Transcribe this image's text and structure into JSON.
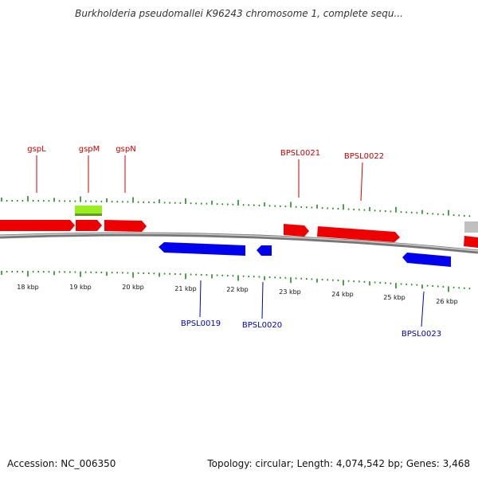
{
  "header": {
    "title": "Burkholderia pseudomallei K96243 chromosome 1, complete sequ..."
  },
  "footer": {
    "accession": "Accession: NC_006350",
    "summary": "Topology: circular; Length: 4,074,542 bp; Genes: 3,468"
  },
  "map": {
    "scale_labels": [
      "18 kbp",
      "19 kbp",
      "20 kbp",
      "21 kbp",
      "22 kbp",
      "23 kbp",
      "24 kbp",
      "25 kbp",
      "26 kbp"
    ],
    "top_gene_labels": [
      "gspL",
      "gspM",
      "gspN",
      "BPSL0021",
      "BPSL0022"
    ],
    "bottom_gene_labels": [
      "BPSL0019",
      "BPSL0020",
      "BPSL0023"
    ],
    "colors": {
      "forward": "#ee0000",
      "reverse": "#0000ee",
      "green_feature": "#99ee22",
      "gray_feature": "#c0c0c0",
      "tick": "#228822",
      "backbone": "#888888",
      "top_label": "#cc0000",
      "bottom_label": "#0000bb"
    }
  }
}
